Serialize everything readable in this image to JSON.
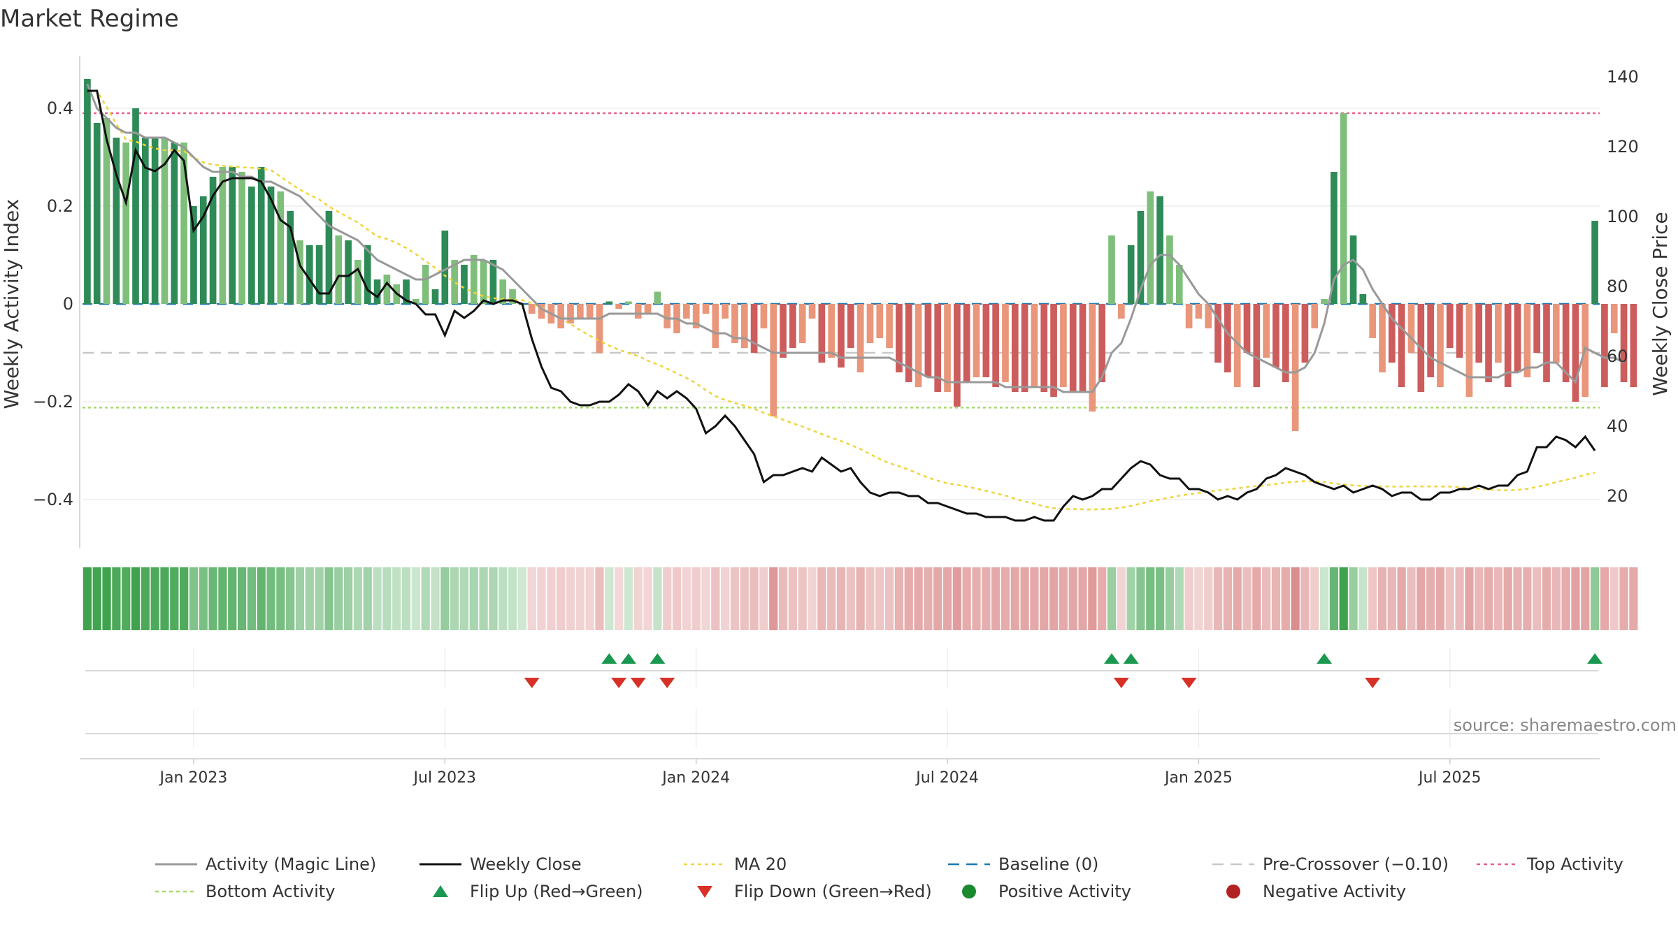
{
  "chart_data": {
    "type": "bar",
    "title": "Market Regime",
    "source": "source: sharemaestro.com",
    "ylabel_left": "Weekly Activity Index",
    "ylabel_right": "Weekly Close Price",
    "ylim_left": [
      -0.5,
      0.5
    ],
    "ylim_right": [
      5,
      145
    ],
    "yticks_left": [
      {
        "v": 0.4,
        "label": "0.4"
      },
      {
        "v": 0.2,
        "label": "0.2"
      },
      {
        "v": 0,
        "label": "0"
      },
      {
        "v": -0.2,
        "label": "−0.2"
      },
      {
        "v": -0.4,
        "label": "−0.4"
      }
    ],
    "yticks_right": [
      {
        "v": 140,
        "label": "140"
      },
      {
        "v": 120,
        "label": "120"
      },
      {
        "v": 100,
        "label": "100"
      },
      {
        "v": 80,
        "label": "80"
      },
      {
        "v": 60,
        "label": "60"
      },
      {
        "v": 40,
        "label": "40"
      },
      {
        "v": 20,
        "label": "20"
      }
    ],
    "x_ticks": [
      {
        "week": 11,
        "label": "Jan 2023"
      },
      {
        "week": 37,
        "label": "Jul 2023"
      },
      {
        "week": 63,
        "label": "Jan 2024"
      },
      {
        "week": 89,
        "label": "Jul 2024"
      },
      {
        "week": 115,
        "label": "Jan 2025"
      },
      {
        "week": 141,
        "label": "Jul 2025"
      }
    ],
    "weeks": 157,
    "grid": true,
    "reference_lines": {
      "top_activity": 0.39,
      "bottom_activity": -0.212,
      "pre_crossover": -0.1,
      "baseline": 0
    },
    "colors": {
      "strong_green": "#2e8b57",
      "light_green": "#7fbf7b",
      "strong_red": "#cd5c5c",
      "light_red": "#e9967a",
      "close": "#111111",
      "activity": "#999999",
      "ma20": "#f0d43a",
      "baseline": "#1f77b4",
      "pre_crossover": "#c8c8c8",
      "top_activity": "#e8608a",
      "bottom_activity": "#a6d96a",
      "flip_up": "#1a9850",
      "flip_down": "#d73027",
      "positive_dot": "#1a8a2f",
      "negative_dot": "#b22222"
    },
    "activity_bars": [
      0.46,
      0.37,
      0.38,
      0.34,
      0.33,
      0.4,
      0.34,
      0.34,
      0.34,
      0.33,
      0.33,
      0.2,
      0.22,
      0.26,
      0.28,
      0.28,
      0.27,
      0.24,
      0.28,
      0.24,
      0.23,
      0.19,
      0.13,
      0.12,
      0.12,
      0.19,
      0.14,
      0.13,
      0.09,
      0.12,
      0.05,
      0.06,
      0.04,
      0.05,
      0.01,
      0.08,
      0.03,
      0.15,
      0.09,
      0.08,
      0.1,
      0.09,
      0.09,
      0.05,
      0.03,
      0.0,
      -0.02,
      -0.03,
      -0.04,
      -0.05,
      -0.04,
      -0.03,
      -0.03,
      -0.1,
      0.005,
      -0.01,
      0.005,
      -0.03,
      -0.02,
      0.025,
      -0.05,
      -0.06,
      -0.03,
      -0.05,
      -0.02,
      -0.09,
      -0.03,
      -0.08,
      -0.09,
      -0.1,
      -0.05,
      -0.23,
      -0.11,
      -0.09,
      -0.08,
      -0.03,
      -0.12,
      -0.11,
      -0.13,
      -0.09,
      -0.14,
      -0.08,
      -0.07,
      -0.09,
      -0.14,
      -0.16,
      -0.17,
      -0.15,
      -0.18,
      -0.18,
      -0.21,
      -0.16,
      -0.15,
      -0.15,
      -0.17,
      -0.16,
      -0.18,
      -0.18,
      -0.17,
      -0.18,
      -0.19,
      -0.17,
      -0.18,
      -0.18,
      -0.22,
      -0.16,
      0.14,
      -0.03,
      0.12,
      0.19,
      0.23,
      0.22,
      0.14,
      0.08,
      -0.05,
      -0.03,
      -0.05,
      -0.12,
      -0.14,
      -0.17,
      -0.1,
      -0.17,
      -0.11,
      -0.13,
      -0.16,
      -0.26,
      -0.12,
      -0.05,
      0.01,
      0.27,
      0.39,
      0.14,
      0.02,
      -0.07,
      -0.14,
      -0.12,
      -0.17,
      -0.1,
      -0.18,
      -0.15,
      -0.17,
      -0.09,
      -0.11,
      -0.19,
      -0.12,
      -0.16,
      -0.12,
      -0.17,
      -0.14,
      -0.15,
      -0.1,
      -0.16,
      -0.12,
      -0.16,
      -0.2,
      -0.19,
      0.17,
      -0.17,
      -0.06,
      -0.16,
      -0.17
    ],
    "activity_line": [
      0.45,
      0.4,
      0.38,
      0.36,
      0.35,
      0.35,
      0.34,
      0.34,
      0.34,
      0.33,
      0.32,
      0.3,
      0.28,
      0.27,
      0.27,
      0.27,
      0.26,
      0.26,
      0.25,
      0.25,
      0.24,
      0.23,
      0.22,
      0.2,
      0.18,
      0.16,
      0.15,
      0.14,
      0.13,
      0.11,
      0.09,
      0.08,
      0.07,
      0.06,
      0.05,
      0.05,
      0.06,
      0.07,
      0.08,
      0.09,
      0.09,
      0.09,
      0.08,
      0.07,
      0.05,
      0.03,
      0.01,
      -0.01,
      -0.02,
      -0.03,
      -0.03,
      -0.03,
      -0.03,
      -0.03,
      -0.02,
      -0.02,
      -0.02,
      -0.02,
      -0.02,
      -0.02,
      -0.03,
      -0.03,
      -0.04,
      -0.04,
      -0.05,
      -0.06,
      -0.06,
      -0.07,
      -0.07,
      -0.08,
      -0.09,
      -0.1,
      -0.1,
      -0.1,
      -0.1,
      -0.1,
      -0.1,
      -0.1,
      -0.11,
      -0.11,
      -0.11,
      -0.11,
      -0.11,
      -0.11,
      -0.12,
      -0.13,
      -0.14,
      -0.15,
      -0.15,
      -0.16,
      -0.16,
      -0.16,
      -0.16,
      -0.16,
      -0.16,
      -0.17,
      -0.17,
      -0.17,
      -0.17,
      -0.17,
      -0.17,
      -0.18,
      -0.18,
      -0.18,
      -0.18,
      -0.15,
      -0.1,
      -0.08,
      -0.03,
      0.03,
      0.08,
      0.1,
      0.1,
      0.08,
      0.05,
      0.02,
      0.0,
      -0.03,
      -0.06,
      -0.08,
      -0.1,
      -0.11,
      -0.12,
      -0.13,
      -0.14,
      -0.14,
      -0.13,
      -0.1,
      -0.04,
      0.05,
      0.08,
      0.09,
      0.07,
      0.03,
      0.0,
      -0.03,
      -0.05,
      -0.07,
      -0.09,
      -0.11,
      -0.12,
      -0.13,
      -0.14,
      -0.15,
      -0.15,
      -0.15,
      -0.15,
      -0.14,
      -0.14,
      -0.13,
      -0.13,
      -0.12,
      -0.12,
      -0.14,
      -0.16,
      -0.09,
      -0.1,
      -0.11,
      -0.11,
      -0.12
    ],
    "weekly_close": [
      136,
      136,
      122,
      112,
      104,
      119,
      114,
      113,
      115,
      119,
      116,
      96,
      100,
      106,
      110,
      111,
      111,
      111,
      110,
      105,
      99,
      97,
      86,
      82,
      78,
      78,
      83,
      83,
      85,
      79,
      77,
      81,
      78,
      76,
      75,
      72,
      72,
      66,
      73,
      71,
      73,
      76,
      75,
      76,
      76,
      75,
      65,
      57,
      51,
      50,
      47,
      46,
      46,
      47,
      47,
      49,
      52,
      50,
      46,
      50,
      48,
      50,
      48,
      45,
      38,
      40,
      43,
      40,
      36,
      32,
      24,
      26,
      26,
      27,
      28,
      27,
      31,
      29,
      27,
      28,
      24,
      21,
      20,
      21,
      21,
      20,
      20,
      18,
      18,
      17,
      16,
      15,
      15,
      14,
      14,
      14,
      13,
      13,
      14,
      13,
      13,
      17,
      20,
      19,
      20,
      22,
      22,
      25,
      28,
      30,
      29,
      26,
      25,
      25,
      22,
      22,
      21,
      19,
      20,
      19,
      21,
      22,
      25,
      26,
      28,
      27,
      26,
      24,
      23,
      22,
      23,
      21,
      22,
      23,
      22,
      20,
      21,
      21,
      19,
      19,
      21,
      21,
      22,
      22,
      23,
      22,
      23,
      23,
      26,
      27,
      34,
      34,
      37,
      36,
      34,
      37,
      33
    ]
  },
  "legend": {
    "activity": "Activity (Magic Line)",
    "close": "Weekly Close",
    "ma20": "MA 20",
    "baseline": "Baseline (0)",
    "pre_crossover": "Pre-Crossover (−0.10)",
    "top_activity": "Top Activity",
    "bottom_activity": "Bottom Activity",
    "flip_up": "Flip Up (Red→Green)",
    "flip_down": "Flip Down (Green→Red)",
    "positive": "Positive Activity",
    "negative": "Negative Activity"
  }
}
